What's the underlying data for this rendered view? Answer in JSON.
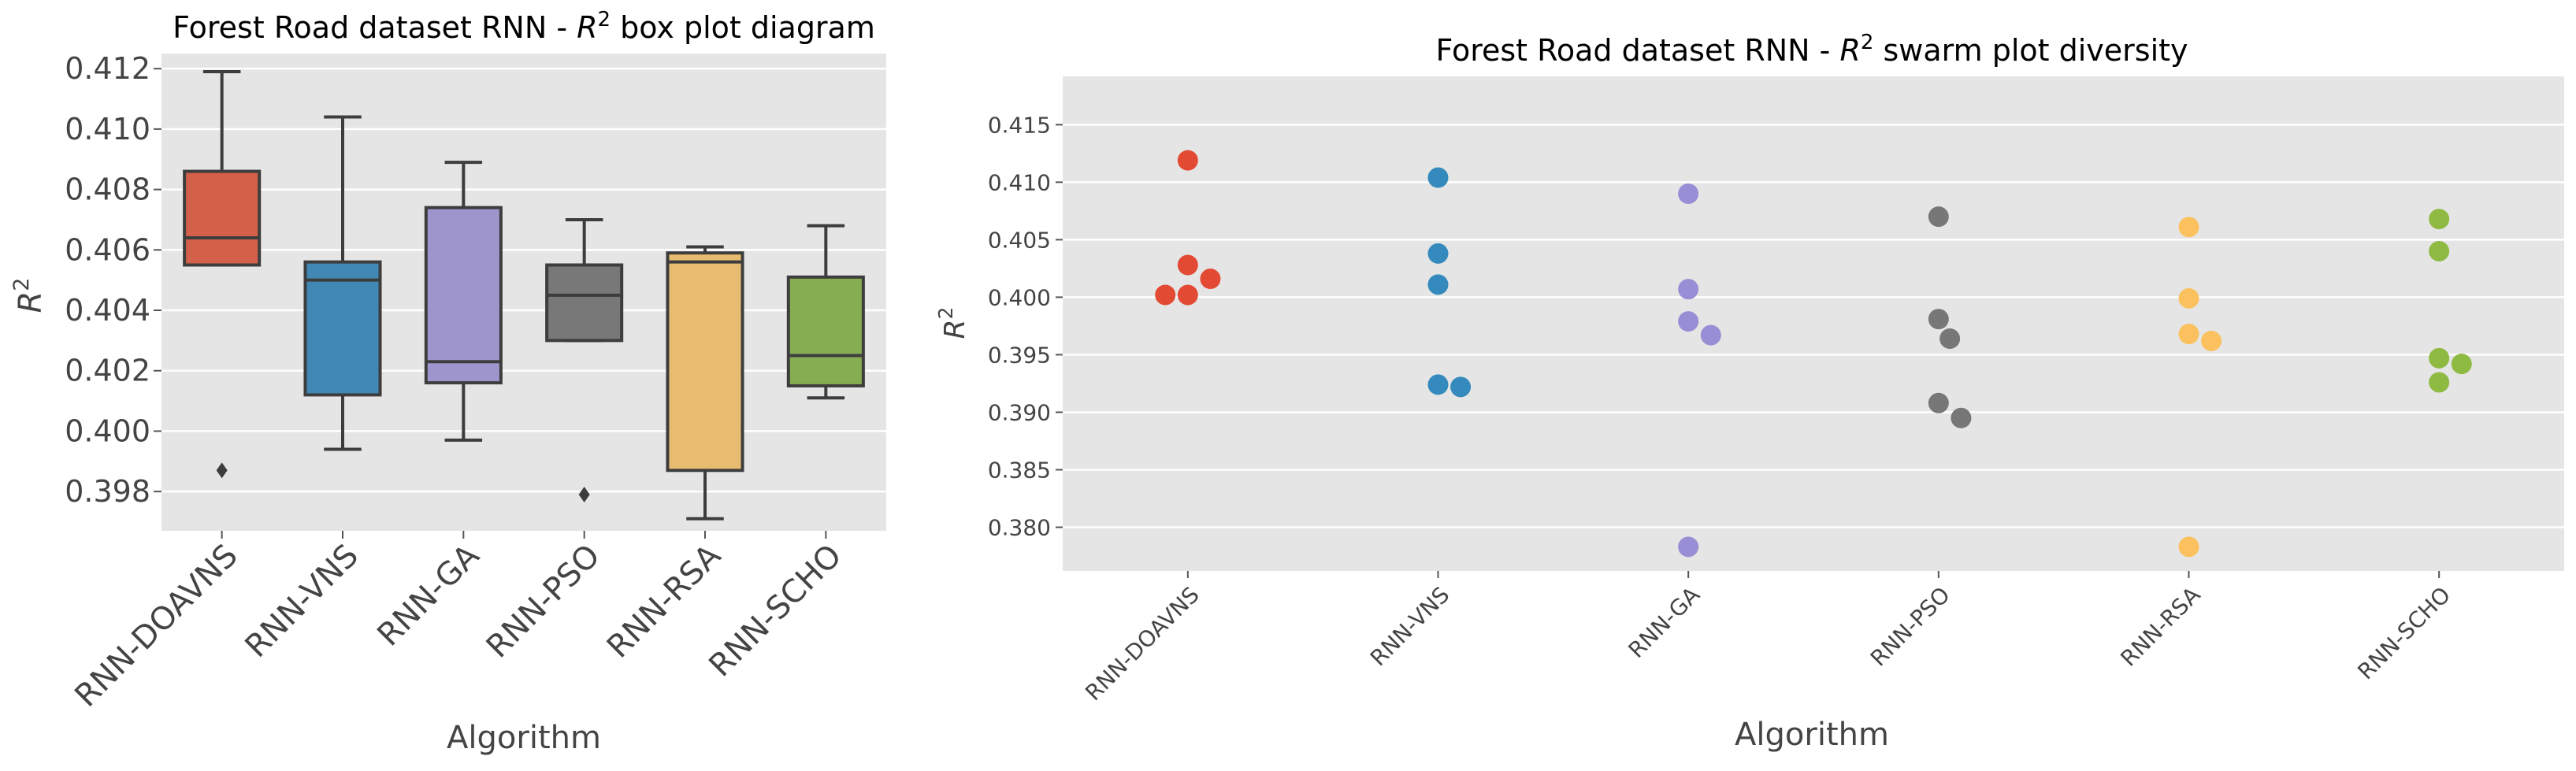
{
  "chart_data": [
    {
      "type": "box",
      "title_prefix": "Forest Road dataset RNN -  ",
      "title_math": "R",
      "title_sup": "2",
      "title_suffix": " box plot diagram",
      "xlabel": "Algorithm",
      "ylabel_math": "R",
      "ylabel_sup": "2",
      "ylim": [
        0.3967,
        0.4125
      ],
      "yticks": [
        "0.398",
        "0.400",
        "0.402",
        "0.404",
        "0.406",
        "0.408",
        "0.410",
        "0.412"
      ],
      "categories": [
        "RNN-DOAVNS",
        "RNN-VNS",
        "RNN-GA",
        "RNN-PSO",
        "RNN-RSA",
        "RNN-SCHO"
      ],
      "colors": [
        "#d5604a",
        "#4288b5",
        "#9e95cc",
        "#787878",
        "#e8bc70",
        "#87ad53"
      ],
      "boxes": [
        {
          "whisker_low": 0.4055,
          "q1": 0.4055,
          "median": 0.4064,
          "q3": 0.4086,
          "whisker_high": 0.4119,
          "outliers": [
            0.3987
          ]
        },
        {
          "whisker_low": 0.3994,
          "q1": 0.4012,
          "median": 0.405,
          "q3": 0.4056,
          "whisker_high": 0.4104,
          "outliers": []
        },
        {
          "whisker_low": 0.3997,
          "q1": 0.4016,
          "median": 0.4023,
          "q3": 0.4074,
          "whisker_high": 0.4089,
          "outliers": []
        },
        {
          "whisker_low": 0.403,
          "q1": 0.403,
          "median": 0.4045,
          "q3": 0.4055,
          "whisker_high": 0.407,
          "outliers": [
            0.3979
          ]
        },
        {
          "whisker_low": 0.3971,
          "q1": 0.3987,
          "median": 0.4056,
          "q3": 0.4059,
          "whisker_high": 0.4061,
          "outliers": []
        },
        {
          "whisker_low": 0.4011,
          "q1": 0.4015,
          "median": 0.4025,
          "q3": 0.4051,
          "whisker_high": 0.4068,
          "outliers": []
        }
      ]
    },
    {
      "type": "scatter",
      "title_prefix": "Forest Road dataset RNN -  ",
      "title_math": "R",
      "title_sup": "2",
      "title_suffix": " swarm plot diversity",
      "xlabel": "Algorithm",
      "ylabel_math": "R",
      "ylabel_sup": "2",
      "ylim": [
        0.3762,
        0.4192
      ],
      "yticks": [
        "0.380",
        "0.385",
        "0.390",
        "0.395",
        "0.400",
        "0.405",
        "0.410",
        "0.415"
      ],
      "categories": [
        "RNN-DOAVNS",
        "RNN-VNS",
        "RNN-GA",
        "RNN-PSO",
        "RNN-RSA",
        "RNN-SCHO"
      ],
      "colors": [
        "#e24a33",
        "#348abd",
        "#988ed5",
        "#777777",
        "#fbc15e",
        "#8eba42"
      ],
      "points": [
        [
          0.4119,
          0.4028,
          0.4016,
          0.4002,
          0.4002
        ],
        [
          0.4104,
          0.4038,
          0.4011,
          0.3924,
          0.3922
        ],
        [
          0.409,
          0.4007,
          0.3979,
          0.3967,
          0.3783
        ],
        [
          0.407,
          0.3981,
          0.3964,
          0.3908,
          0.3895
        ],
        [
          0.4061,
          0.3999,
          0.3968,
          0.3962,
          0.3783
        ],
        [
          0.4068,
          0.404,
          0.3947,
          0.3942,
          0.3926
        ]
      ]
    }
  ]
}
